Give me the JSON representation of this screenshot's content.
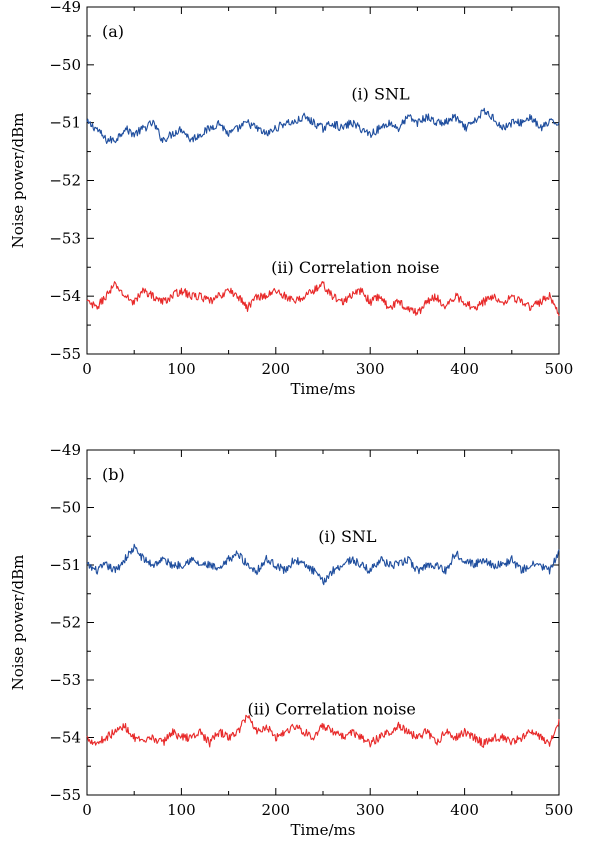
{
  "chart_data": [
    {
      "type": "line",
      "panel_label": "(a)",
      "xlabel": "Time/ms",
      "ylabel": "Noise power/dBm",
      "xlim": [
        0,
        500
      ],
      "ylim": [
        -55,
        -49
      ],
      "xticks": [
        0,
        100,
        200,
        300,
        400,
        500
      ],
      "yticks": [
        -55,
        -54,
        -53,
        -52,
        -51,
        -50,
        -49
      ],
      "x_tick_labels": [
        "0",
        "100",
        "200",
        "300",
        "400",
        "500"
      ],
      "y_tick_labels": [
        "−55",
        "−54",
        "−53",
        "−52",
        "−51",
        "−50",
        "−49"
      ],
      "grid": false,
      "series": [
        {
          "label": "(i) SNL",
          "color": "#1f4e9e",
          "x": [
            0,
            10,
            20,
            30,
            40,
            50,
            60,
            70,
            80,
            90,
            100,
            110,
            120,
            130,
            140,
            150,
            160,
            170,
            180,
            190,
            200,
            210,
            220,
            230,
            240,
            250,
            260,
            270,
            280,
            290,
            300,
            310,
            320,
            330,
            340,
            350,
            360,
            370,
            380,
            390,
            400,
            410,
            420,
            430,
            440,
            450,
            460,
            470,
            480,
            490,
            500
          ],
          "y": [
            -51.0,
            -51.1,
            -51.3,
            -51.3,
            -51.1,
            -51.2,
            -51.1,
            -51.0,
            -51.3,
            -51.2,
            -51.1,
            -51.3,
            -51.2,
            -51.1,
            -51.0,
            -51.2,
            -51.1,
            -51.0,
            -51.1,
            -51.2,
            -51.1,
            -51.0,
            -51.0,
            -50.9,
            -51.0,
            -51.1,
            -51.0,
            -51.1,
            -51.0,
            -51.1,
            -51.2,
            -51.1,
            -51.0,
            -51.1,
            -50.9,
            -51.0,
            -50.9,
            -51.0,
            -51.0,
            -50.9,
            -51.1,
            -51.0,
            -50.8,
            -50.9,
            -51.1,
            -51.0,
            -51.0,
            -50.9,
            -51.1,
            -51.0,
            -51.0
          ],
          "annotation": {
            "text": "(i) SNL",
            "x": 280,
            "y": -50.6
          }
        },
        {
          "label": "(ii) Correlation noise",
          "color": "#e82a2a",
          "x": [
            0,
            10,
            20,
            30,
            40,
            50,
            60,
            70,
            80,
            90,
            100,
            110,
            120,
            130,
            140,
            150,
            160,
            170,
            180,
            190,
            200,
            210,
            220,
            230,
            240,
            250,
            260,
            270,
            280,
            290,
            300,
            310,
            320,
            330,
            340,
            350,
            360,
            370,
            380,
            390,
            400,
            410,
            420,
            430,
            440,
            450,
            460,
            470,
            480,
            490,
            500
          ],
          "y": [
            -54.1,
            -54.2,
            -54.0,
            -53.8,
            -54.0,
            -54.1,
            -53.9,
            -54.0,
            -54.1,
            -54.0,
            -53.9,
            -54.0,
            -54.0,
            -54.1,
            -54.0,
            -53.9,
            -54.0,
            -54.2,
            -54.0,
            -54.0,
            -53.9,
            -54.0,
            -54.1,
            -54.0,
            -53.9,
            -53.8,
            -54.0,
            -54.1,
            -54.0,
            -53.9,
            -54.1,
            -54.0,
            -54.2,
            -54.1,
            -54.2,
            -54.3,
            -54.1,
            -54.0,
            -54.2,
            -54.0,
            -54.1,
            -54.2,
            -54.1,
            -54.0,
            -54.1,
            -54.0,
            -54.1,
            -54.2,
            -54.1,
            -54.0,
            -54.3
          ],
          "annotation": {
            "text": "(ii) Correlation noise",
            "x": 195,
            "y": -53.6
          }
        }
      ]
    },
    {
      "type": "line",
      "panel_label": "(b)",
      "xlabel": "Time/ms",
      "ylabel": "Noise power/dBm",
      "xlim": [
        0,
        500
      ],
      "ylim": [
        -55,
        -49
      ],
      "xticks": [
        0,
        100,
        200,
        300,
        400,
        500
      ],
      "yticks": [
        -55,
        -54,
        -53,
        -52,
        -51,
        -50,
        -49
      ],
      "x_tick_labels": [
        "0",
        "100",
        "200",
        "300",
        "400",
        "500"
      ],
      "y_tick_labels": [
        "−55",
        "−54",
        "−53",
        "−52",
        "−51",
        "−50",
        "−49"
      ],
      "grid": false,
      "series": [
        {
          "label": "(i) SNL",
          "color": "#1f4e9e",
          "x": [
            0,
            10,
            20,
            30,
            40,
            50,
            60,
            70,
            80,
            90,
            100,
            110,
            120,
            130,
            140,
            150,
            160,
            170,
            180,
            190,
            200,
            210,
            220,
            230,
            240,
            250,
            260,
            270,
            280,
            290,
            300,
            310,
            320,
            330,
            340,
            350,
            360,
            370,
            380,
            390,
            400,
            410,
            420,
            430,
            440,
            450,
            460,
            470,
            480,
            490,
            500
          ],
          "y": [
            -51.0,
            -51.1,
            -51.0,
            -51.1,
            -50.9,
            -50.7,
            -50.9,
            -51.0,
            -50.9,
            -51.0,
            -51.0,
            -50.9,
            -51.0,
            -51.0,
            -51.1,
            -50.9,
            -50.8,
            -51.0,
            -51.1,
            -50.9,
            -51.0,
            -51.1,
            -50.9,
            -51.0,
            -51.1,
            -51.3,
            -51.1,
            -51.0,
            -50.9,
            -51.0,
            -51.1,
            -50.9,
            -51.0,
            -51.0,
            -50.9,
            -51.1,
            -51.0,
            -51.0,
            -51.1,
            -50.8,
            -50.9,
            -51.0,
            -50.9,
            -51.0,
            -51.0,
            -50.9,
            -51.1,
            -51.0,
            -51.0,
            -51.1,
            -50.8
          ],
          "annotation": {
            "text": "(i) SNL",
            "x": 245,
            "y": -50.6
          }
        },
        {
          "label": "(ii) Correlation noise",
          "color": "#e82a2a",
          "x": [
            0,
            10,
            20,
            30,
            40,
            50,
            60,
            70,
            80,
            90,
            100,
            110,
            120,
            130,
            140,
            150,
            160,
            170,
            180,
            190,
            200,
            210,
            220,
            230,
            240,
            250,
            260,
            270,
            280,
            290,
            300,
            310,
            320,
            330,
            340,
            350,
            360,
            370,
            380,
            390,
            400,
            410,
            420,
            430,
            440,
            450,
            460,
            470,
            480,
            490,
            500
          ],
          "y": [
            -54.0,
            -54.1,
            -54.0,
            -53.9,
            -53.8,
            -54.0,
            -54.1,
            -54.0,
            -54.1,
            -53.9,
            -54.0,
            -54.0,
            -53.9,
            -54.1,
            -53.9,
            -54.0,
            -53.9,
            -53.6,
            -53.9,
            -53.8,
            -54.0,
            -53.9,
            -53.8,
            -53.9,
            -54.0,
            -53.8,
            -53.9,
            -54.0,
            -53.9,
            -54.0,
            -54.1,
            -54.0,
            -53.9,
            -53.8,
            -53.9,
            -54.0,
            -53.9,
            -54.1,
            -53.9,
            -54.0,
            -53.9,
            -54.0,
            -54.1,
            -54.0,
            -54.0,
            -54.1,
            -54.0,
            -53.9,
            -54.0,
            -54.1,
            -53.7
          ],
          "annotation": {
            "text": "(ii) Correlation noise",
            "x": 170,
            "y": -53.6
          }
        }
      ]
    }
  ]
}
